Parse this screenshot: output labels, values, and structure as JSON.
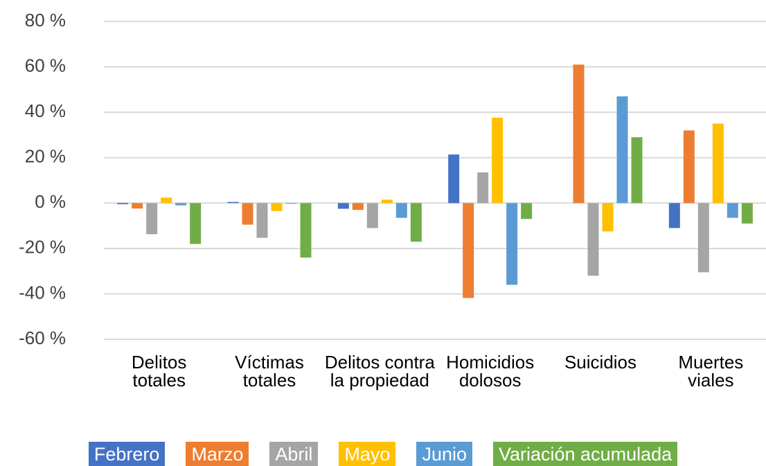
{
  "chart_data": {
    "type": "bar",
    "categories": [
      "Delitos totales",
      "Víctimas totales",
      "Delitos contra la propiedad",
      "Homicidios dolosos",
      "Suicidios",
      "Muertes viales"
    ],
    "series": [
      {
        "name": "Febrero",
        "color": "#4472c4",
        "values": [
          -0.5,
          0.5,
          -2.5,
          21.4,
          0,
          -11
        ]
      },
      {
        "name": "Marzo",
        "color": "#ed7d31",
        "values": [
          -2.4,
          -9.5,
          -3,
          -41.8,
          61,
          32
        ]
      },
      {
        "name": "Abril",
        "color": "#a5a5a5",
        "values": [
          -13.7,
          -15.3,
          -11,
          13.5,
          -32,
          -30.5
        ]
      },
      {
        "name": "Mayo",
        "color": "#ffc000",
        "values": [
          2.4,
          -3.5,
          1.5,
          37.6,
          -12.5,
          35
        ]
      },
      {
        "name": "Junio",
        "color": "#5b9bd5",
        "values": [
          -1,
          -0.3,
          -6.5,
          -36,
          47,
          -6.5
        ]
      },
      {
        "name": "Variación acumulada",
        "color": "#70ad47",
        "values": [
          -18,
          -24,
          -17,
          -7,
          29,
          -9
        ]
      }
    ],
    "ylim": [
      -60,
      80
    ],
    "yticks": [
      {
        "value": -60,
        "label": "-60 %"
      },
      {
        "value": -40,
        "label": "-40 %"
      },
      {
        "value": -20,
        "label": "-20 %"
      },
      {
        "value": 0,
        "label": "0 %"
      },
      {
        "value": 20,
        "label": "20 %"
      },
      {
        "value": 40,
        "label": "40 %"
      },
      {
        "value": 60,
        "label": "60 %"
      },
      {
        "value": 80,
        "label": "80 %"
      }
    ],
    "grid": true,
    "legend": "bottom"
  }
}
